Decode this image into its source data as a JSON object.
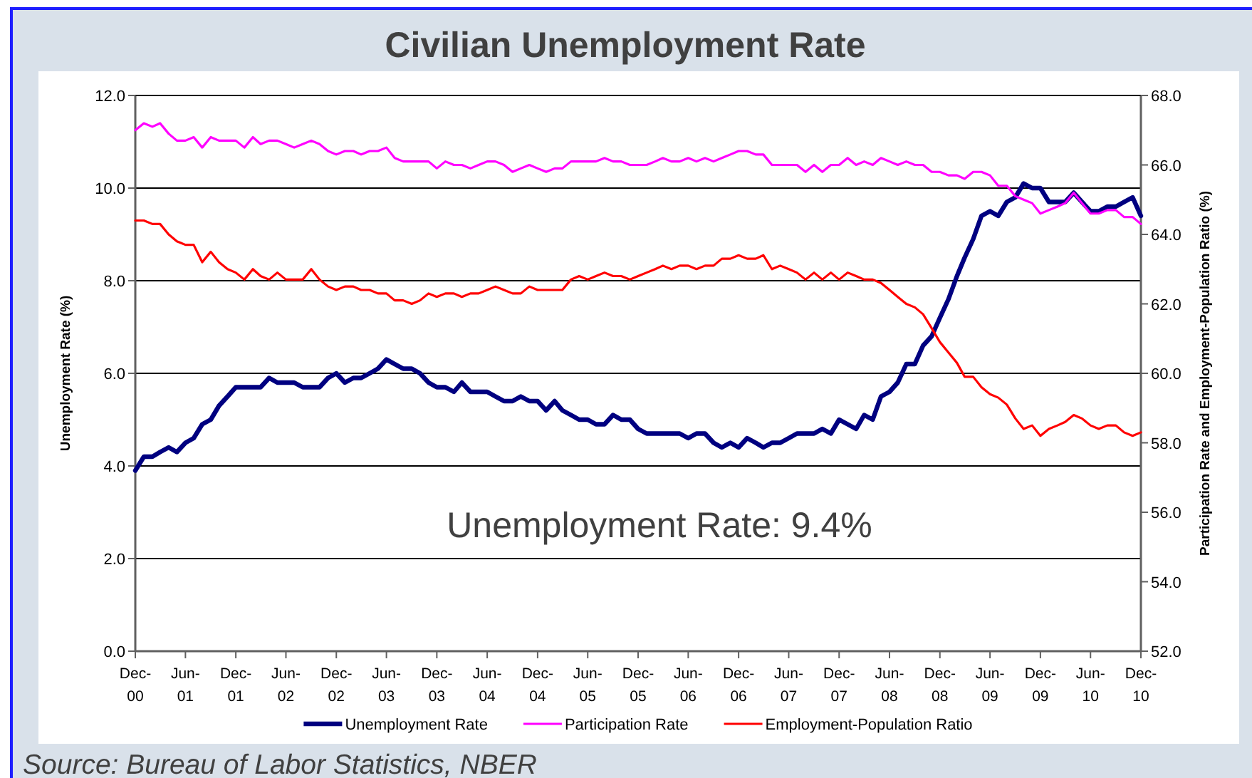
{
  "chart_data": {
    "type": "line",
    "title": "Civilian Unemployment Rate",
    "ylabel": "Unemployment Rate (%)",
    "y2label": "Participation Rate and Employment-Population Ratio (%)",
    "annotations": [
      "Unemployment Rate: 9.4%",
      "Source: Bureau of Labor Statistics, NBER"
    ],
    "x": [
      "2000-12",
      "2001-01",
      "2001-02",
      "2001-03",
      "2001-04",
      "2001-05",
      "2001-06",
      "2001-07",
      "2001-08",
      "2001-09",
      "2001-10",
      "2001-11",
      "2001-12",
      "2002-01",
      "2002-02",
      "2002-03",
      "2002-04",
      "2002-05",
      "2002-06",
      "2002-07",
      "2002-08",
      "2002-09",
      "2002-10",
      "2002-11",
      "2002-12",
      "2003-01",
      "2003-02",
      "2003-03",
      "2003-04",
      "2003-05",
      "2003-06",
      "2003-07",
      "2003-08",
      "2003-09",
      "2003-10",
      "2003-11",
      "2003-12",
      "2004-01",
      "2004-02",
      "2004-03",
      "2004-04",
      "2004-05",
      "2004-06",
      "2004-07",
      "2004-08",
      "2004-09",
      "2004-10",
      "2004-11",
      "2004-12",
      "2005-01",
      "2005-02",
      "2005-03",
      "2005-04",
      "2005-05",
      "2005-06",
      "2005-07",
      "2005-08",
      "2005-09",
      "2005-10",
      "2005-11",
      "2005-12",
      "2006-01",
      "2006-02",
      "2006-03",
      "2006-04",
      "2006-05",
      "2006-06",
      "2006-07",
      "2006-08",
      "2006-09",
      "2006-10",
      "2006-11",
      "2006-12",
      "2007-01",
      "2007-02",
      "2007-03",
      "2007-04",
      "2007-05",
      "2007-06",
      "2007-07",
      "2007-08",
      "2007-09",
      "2007-10",
      "2007-11",
      "2007-12",
      "2008-01",
      "2008-02",
      "2008-03",
      "2008-04",
      "2008-05",
      "2008-06",
      "2008-07",
      "2008-08",
      "2008-09",
      "2008-10",
      "2008-11",
      "2008-12",
      "2009-01",
      "2009-02",
      "2009-03",
      "2009-04",
      "2009-05",
      "2009-06",
      "2009-07",
      "2009-08",
      "2009-09",
      "2009-10",
      "2009-11",
      "2009-12",
      "2010-01",
      "2010-02",
      "2010-03",
      "2010-04",
      "2010-05",
      "2010-06",
      "2010-07",
      "2010-08",
      "2010-09",
      "2010-10",
      "2010-11",
      "2010-12"
    ],
    "xlim": [
      "2000-12",
      "2010-12"
    ],
    "xticks": [
      {
        "value": "2000-12",
        "label": "Dec-00"
      },
      {
        "value": "2001-06",
        "label": "Jun-01"
      },
      {
        "value": "2001-12",
        "label": "Dec-01"
      },
      {
        "value": "2002-06",
        "label": "Jun-02"
      },
      {
        "value": "2002-12",
        "label": "Dec-02"
      },
      {
        "value": "2003-06",
        "label": "Jun-03"
      },
      {
        "value": "2003-12",
        "label": "Dec-03"
      },
      {
        "value": "2004-06",
        "label": "Jun-04"
      },
      {
        "value": "2004-12",
        "label": "Dec-04"
      },
      {
        "value": "2005-06",
        "label": "Jun-05"
      },
      {
        "value": "2005-12",
        "label": "Dec-05"
      },
      {
        "value": "2006-06",
        "label": "Jun-06"
      },
      {
        "value": "2006-12",
        "label": "Dec-06"
      },
      {
        "value": "2007-06",
        "label": "Jun-07"
      },
      {
        "value": "2007-12",
        "label": "Dec-07"
      },
      {
        "value": "2008-06",
        "label": "Jun-08"
      },
      {
        "value": "2008-12",
        "label": "Dec-08"
      },
      {
        "value": "2009-06",
        "label": "Jun-09"
      },
      {
        "value": "2009-12",
        "label": "Dec-09"
      },
      {
        "value": "2010-06",
        "label": "Jun-10"
      },
      {
        "value": "2010-12",
        "label": "Dec-10"
      }
    ],
    "ylim": [
      0,
      12
    ],
    "yticks": [
      {
        "value": 0,
        "label": "0.0"
      },
      {
        "value": 2,
        "label": "2.0"
      },
      {
        "value": 4,
        "label": "4.0"
      },
      {
        "value": 6,
        "label": "6.0"
      },
      {
        "value": 8,
        "label": "8.0"
      },
      {
        "value": 10,
        "label": "10.0"
      },
      {
        "value": 12,
        "label": "12.0"
      }
    ],
    "y2lim": [
      52,
      68
    ],
    "y2ticks": [
      {
        "value": 52,
        "label": "52.0"
      },
      {
        "value": 54,
        "label": "54.0"
      },
      {
        "value": 56,
        "label": "56.0"
      },
      {
        "value": 58,
        "label": "58.0"
      },
      {
        "value": 60,
        "label": "60.0"
      },
      {
        "value": 62,
        "label": "62.0"
      },
      {
        "value": 64,
        "label": "64.0"
      },
      {
        "value": 66,
        "label": "66.0"
      },
      {
        "value": 68,
        "label": "68.0"
      }
    ],
    "grid": "y",
    "legend": "bottom",
    "series": [
      {
        "name": "Unemployment Rate",
        "color": "#000080",
        "values": [
          3.9,
          4.2,
          4.2,
          4.3,
          4.4,
          4.3,
          4.5,
          4.6,
          4.9,
          5.0,
          5.3,
          5.5,
          5.7,
          5.7,
          5.7,
          5.7,
          5.9,
          5.8,
          5.8,
          5.8,
          5.7,
          5.7,
          5.7,
          5.9,
          6.0,
          5.8,
          5.9,
          5.9,
          6.0,
          6.1,
          6.3,
          6.2,
          6.1,
          6.1,
          6.0,
          5.8,
          5.7,
          5.7,
          5.6,
          5.8,
          5.6,
          5.6,
          5.6,
          5.5,
          5.4,
          5.4,
          5.5,
          5.4,
          5.4,
          5.2,
          5.4,
          5.2,
          5.1,
          5.0,
          5.0,
          4.9,
          4.9,
          5.1,
          5.0,
          5.0,
          4.8,
          4.7,
          4.7,
          4.7,
          4.7,
          4.7,
          4.6,
          4.7,
          4.7,
          4.5,
          4.4,
          4.5,
          4.4,
          4.6,
          4.5,
          4.4,
          4.5,
          4.5,
          4.6,
          4.7,
          4.7,
          4.7,
          4.8,
          4.7,
          5.0,
          4.9,
          4.8,
          5.1,
          5.0,
          5.5,
          5.6,
          5.8,
          6.2,
          6.2,
          6.6,
          6.8,
          7.2,
          7.6,
          8.1,
          8.5,
          8.9,
          9.4,
          9.5,
          9.4,
          9.7,
          9.8,
          10.1,
          10.0,
          10.0,
          9.7,
          9.7,
          9.7,
          9.9,
          9.7,
          9.5,
          9.5,
          9.6,
          9.6,
          9.7,
          9.8,
          9.4
        ]
      },
      {
        "name": "Participation Rate",
        "color": "#ff00ff",
        "axis": "y2",
        "values": [
          67.0,
          67.2,
          67.1,
          67.2,
          66.9,
          66.7,
          66.7,
          66.8,
          66.5,
          66.8,
          66.7,
          66.7,
          66.7,
          66.5,
          66.8,
          66.6,
          66.7,
          66.7,
          66.6,
          66.5,
          66.6,
          66.7,
          66.6,
          66.4,
          66.3,
          66.4,
          66.4,
          66.3,
          66.4,
          66.4,
          66.5,
          66.2,
          66.1,
          66.1,
          66.1,
          66.1,
          65.9,
          66.1,
          66.0,
          66.0,
          65.9,
          66.0,
          66.1,
          66.1,
          66.0,
          65.8,
          65.9,
          66.0,
          65.9,
          65.8,
          65.9,
          65.9,
          66.1,
          66.1,
          66.1,
          66.1,
          66.2,
          66.1,
          66.1,
          66.0,
          66.0,
          66.0,
          66.1,
          66.2,
          66.1,
          66.1,
          66.2,
          66.1,
          66.2,
          66.1,
          66.2,
          66.3,
          66.4,
          66.4,
          66.3,
          66.3,
          66.0,
          66.0,
          66.0,
          66.0,
          65.8,
          66.0,
          65.8,
          66.0,
          66.0,
          66.2,
          66.0,
          66.1,
          66.0,
          66.2,
          66.1,
          66.0,
          66.1,
          66.0,
          66.0,
          65.8,
          65.8,
          65.7,
          65.7,
          65.6,
          65.8,
          65.8,
          65.7,
          65.4,
          65.4,
          65.1,
          65.0,
          64.9,
          64.6,
          64.7,
          64.8,
          64.9,
          65.2,
          64.9,
          64.6,
          64.6,
          64.7,
          64.7,
          64.5,
          64.5,
          64.3
        ]
      },
      {
        "name": "Employment-Population Ratio",
        "color": "#ff0000",
        "axis": "y2",
        "values": [
          64.4,
          64.4,
          64.3,
          64.3,
          64.0,
          63.8,
          63.7,
          63.7,
          63.2,
          63.5,
          63.2,
          63.0,
          62.9,
          62.7,
          63.0,
          62.8,
          62.7,
          62.9,
          62.7,
          62.7,
          62.7,
          63.0,
          62.7,
          62.5,
          62.4,
          62.5,
          62.5,
          62.4,
          62.4,
          62.3,
          62.3,
          62.1,
          62.1,
          62.0,
          62.1,
          62.3,
          62.2,
          62.3,
          62.3,
          62.2,
          62.3,
          62.3,
          62.4,
          62.5,
          62.4,
          62.3,
          62.3,
          62.5,
          62.4,
          62.4,
          62.4,
          62.4,
          62.7,
          62.8,
          62.7,
          62.8,
          62.9,
          62.8,
          62.8,
          62.7,
          62.8,
          62.9,
          63.0,
          63.1,
          63.0,
          63.1,
          63.1,
          63.0,
          63.1,
          63.1,
          63.3,
          63.3,
          63.4,
          63.3,
          63.3,
          63.4,
          63.0,
          63.1,
          63.0,
          62.9,
          62.7,
          62.9,
          62.7,
          62.9,
          62.7,
          62.9,
          62.8,
          62.7,
          62.7,
          62.6,
          62.4,
          62.2,
          62.0,
          61.9,
          61.7,
          61.3,
          60.9,
          60.6,
          60.3,
          59.9,
          59.9,
          59.6,
          59.4,
          59.3,
          59.1,
          58.7,
          58.4,
          58.5,
          58.2,
          58.4,
          58.5,
          58.6,
          58.8,
          58.7,
          58.5,
          58.4,
          58.5,
          58.5,
          58.3,
          58.2,
          58.3
        ]
      }
    ]
  }
}
